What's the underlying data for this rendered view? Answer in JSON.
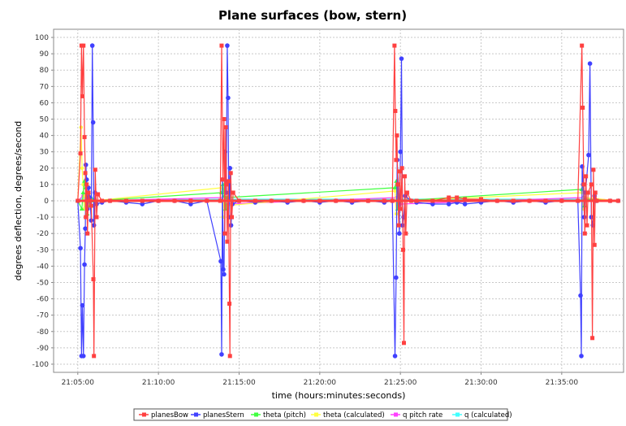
{
  "chart_data": {
    "type": "line",
    "title": "Plane surfaces (bow, stern)",
    "xlabel": "time (hours:minutes:seconds)",
    "ylabel": "degrees deflection, degrees/second",
    "ylim": [
      -105,
      105
    ],
    "xlim": [
      "21:03:30",
      "21:38:50"
    ],
    "y_ticks": [
      100,
      90,
      80,
      70,
      60,
      50,
      40,
      30,
      20,
      10,
      0,
      -10,
      -20,
      -30,
      -40,
      -50,
      -60,
      -70,
      -80,
      -90,
      -100
    ],
    "x_ticks": [
      "21:05:00",
      "21:10:00",
      "21:15:00",
      "21:20:00",
      "21:25:00",
      "21:30:00",
      "21:35:00"
    ],
    "grid": true,
    "legend_position": "bottom",
    "colors": {
      "planesBow": "#ff4040",
      "planesStern": "#4040ff",
      "theta (pitch)": "#40ff40",
      "theta (calculated)": "#ffff40",
      "q pitch rate": "#ff40ff",
      "q (calculated)": "#40ffff",
      "plot_background": "#ffffff",
      "gridline": "#c8c8c8"
    },
    "series": [
      {
        "name": "planesBow",
        "points": [
          [
            "21:05:00",
            0
          ],
          [
            "21:05:10",
            29
          ],
          [
            "21:05:14",
            95
          ],
          [
            "21:05:17",
            64
          ],
          [
            "21:05:21",
            95
          ],
          [
            "21:05:25",
            39
          ],
          [
            "21:05:28",
            17
          ],
          [
            "21:05:30",
            -10
          ],
          [
            "21:05:33",
            10
          ],
          [
            "21:05:36",
            -20
          ],
          [
            "21:05:40",
            5
          ],
          [
            "21:05:45",
            0
          ],
          [
            "21:05:50",
            -3
          ],
          [
            "21:05:58",
            -48
          ],
          [
            "21:06:00",
            -95
          ],
          [
            "21:06:05",
            19
          ],
          [
            "21:06:10",
            -10
          ],
          [
            "21:06:15",
            4
          ],
          [
            "21:06:30",
            0
          ],
          [
            "21:07:00",
            0
          ],
          [
            "21:08:00",
            0
          ],
          [
            "21:09:00",
            0
          ],
          [
            "21:10:00",
            0
          ],
          [
            "21:11:00",
            0
          ],
          [
            "21:12:00",
            0
          ],
          [
            "21:13:00",
            0
          ],
          [
            "21:13:50",
            0
          ],
          [
            "21:13:55",
            95
          ],
          [
            "21:14:00",
            13
          ],
          [
            "21:14:04",
            50
          ],
          [
            "21:14:07",
            -20
          ],
          [
            "21:14:10",
            45
          ],
          [
            "21:14:13",
            10
          ],
          [
            "21:14:16",
            -25
          ],
          [
            "21:14:20",
            12
          ],
          [
            "21:14:24",
            -63
          ],
          [
            "21:14:26",
            -95
          ],
          [
            "21:14:29",
            17
          ],
          [
            "21:14:33",
            -10
          ],
          [
            "21:14:38",
            5
          ],
          [
            "21:15:00",
            0
          ],
          [
            "21:16:00",
            0
          ],
          [
            "21:17:00",
            0
          ],
          [
            "21:18:00",
            0
          ],
          [
            "21:19:00",
            0
          ],
          [
            "21:20:00",
            0
          ],
          [
            "21:21:00",
            0
          ],
          [
            "21:22:00",
            0
          ],
          [
            "21:23:00",
            0
          ],
          [
            "21:24:00",
            0
          ],
          [
            "21:24:30",
            0
          ],
          [
            "21:24:38",
            95
          ],
          [
            "21:24:41",
            55
          ],
          [
            "21:24:44",
            25
          ],
          [
            "21:24:47",
            40
          ],
          [
            "21:24:50",
            10
          ],
          [
            "21:24:54",
            -15
          ],
          [
            "21:24:58",
            18
          ],
          [
            "21:25:02",
            -5
          ],
          [
            "21:25:06",
            20
          ],
          [
            "21:25:10",
            -30
          ],
          [
            "21:25:13",
            -87
          ],
          [
            "21:25:16",
            15
          ],
          [
            "21:25:20",
            -20
          ],
          [
            "21:25:25",
            5
          ],
          [
            "21:25:40",
            0
          ],
          [
            "21:26:00",
            0
          ],
          [
            "21:27:00",
            0
          ],
          [
            "21:28:00",
            2
          ],
          [
            "21:28:30",
            2
          ],
          [
            "21:29:00",
            1
          ],
          [
            "21:30:00",
            1
          ],
          [
            "21:31:00",
            0
          ],
          [
            "21:32:00",
            0
          ],
          [
            "21:33:00",
            0
          ],
          [
            "21:34:00",
            0
          ],
          [
            "21:35:00",
            0
          ],
          [
            "21:36:00",
            0
          ],
          [
            "21:36:15",
            95
          ],
          [
            "21:36:18",
            57
          ],
          [
            "21:36:22",
            10
          ],
          [
            "21:36:26",
            -20
          ],
          [
            "21:36:30",
            15
          ],
          [
            "21:36:34",
            -15
          ],
          [
            "21:36:38",
            5
          ],
          [
            "21:36:50",
            10
          ],
          [
            "21:36:54",
            -84
          ],
          [
            "21:36:58",
            19
          ],
          [
            "21:37:02",
            -27
          ],
          [
            "21:37:05",
            5
          ],
          [
            "21:37:10",
            0
          ],
          [
            "21:38:00",
            0
          ],
          [
            "21:38:30",
            0
          ]
        ]
      },
      {
        "name": "planesStern",
        "points": [
          [
            "21:05:00",
            0
          ],
          [
            "21:05:10",
            -29
          ],
          [
            "21:05:14",
            -95
          ],
          [
            "21:05:17",
            -64
          ],
          [
            "21:05:21",
            -95
          ],
          [
            "21:05:25",
            -39
          ],
          [
            "21:05:28",
            -17
          ],
          [
            "21:05:30",
            22
          ],
          [
            "21:05:33",
            13
          ],
          [
            "21:05:36",
            -5
          ],
          [
            "21:05:40",
            8
          ],
          [
            "21:05:45",
            2
          ],
          [
            "21:05:50",
            -12
          ],
          [
            "21:05:54",
            95
          ],
          [
            "21:05:57",
            48
          ],
          [
            "21:06:00",
            -15
          ],
          [
            "21:06:04",
            5
          ],
          [
            "21:06:10",
            -2
          ],
          [
            "21:06:30",
            -1
          ],
          [
            "21:07:00",
            0
          ],
          [
            "21:08:00",
            -1
          ],
          [
            "21:09:00",
            -2
          ],
          [
            "21:10:00",
            0
          ],
          [
            "21:11:00",
            0
          ],
          [
            "21:12:00",
            -2
          ],
          [
            "21:13:00",
            0
          ],
          [
            "21:13:52",
            -37
          ],
          [
            "21:13:55",
            -94
          ],
          [
            "21:13:58",
            13
          ],
          [
            "21:14:01",
            -42
          ],
          [
            "21:14:04",
            -45
          ],
          [
            "21:14:08",
            30
          ],
          [
            "21:14:12",
            5
          ],
          [
            "21:14:16",
            95
          ],
          [
            "21:14:19",
            63
          ],
          [
            "21:14:22",
            -10
          ],
          [
            "21:14:26",
            20
          ],
          [
            "21:14:30",
            -15
          ],
          [
            "21:14:35",
            -2
          ],
          [
            "21:15:00",
            0
          ],
          [
            "21:16:00",
            -1
          ],
          [
            "21:17:00",
            0
          ],
          [
            "21:18:00",
            -1
          ],
          [
            "21:19:00",
            0
          ],
          [
            "21:20:00",
            -1
          ],
          [
            "21:21:00",
            0
          ],
          [
            "21:22:00",
            -1
          ],
          [
            "21:23:00",
            0
          ],
          [
            "21:24:00",
            -1
          ],
          [
            "21:24:30",
            0
          ],
          [
            "21:24:40",
            -95
          ],
          [
            "21:24:44",
            -47
          ],
          [
            "21:24:48",
            25
          ],
          [
            "21:24:52",
            10
          ],
          [
            "21:24:56",
            -20
          ],
          [
            "21:25:00",
            30
          ],
          [
            "21:25:04",
            87
          ],
          [
            "21:25:08",
            -15
          ],
          [
            "21:25:12",
            -10
          ],
          [
            "21:25:18",
            3
          ],
          [
            "21:25:40",
            0
          ],
          [
            "21:26:00",
            -1
          ],
          [
            "21:27:00",
            -2
          ],
          [
            "21:28:00",
            -2
          ],
          [
            "21:28:30",
            -1
          ],
          [
            "21:29:00",
            -2
          ],
          [
            "21:30:00",
            -1
          ],
          [
            "21:31:00",
            0
          ],
          [
            "21:32:00",
            -1
          ],
          [
            "21:33:00",
            0
          ],
          [
            "21:34:00",
            -1
          ],
          [
            "21:35:00",
            0
          ],
          [
            "21:36:00",
            0
          ],
          [
            "21:36:10",
            -58
          ],
          [
            "21:36:13",
            -95
          ],
          [
            "21:36:16",
            21
          ],
          [
            "21:36:20",
            10
          ],
          [
            "21:36:24",
            -10
          ],
          [
            "21:36:28",
            5
          ],
          [
            "21:36:40",
            28
          ],
          [
            "21:36:45",
            84
          ],
          [
            "21:36:50",
            -10
          ],
          [
            "21:36:56",
            -15
          ],
          [
            "21:37:02",
            3
          ],
          [
            "21:37:10",
            0
          ],
          [
            "21:38:00",
            0
          ],
          [
            "21:38:30",
            0
          ]
        ]
      },
      {
        "name": "theta (pitch)",
        "points": [
          [
            "21:05:00",
            0
          ],
          [
            "21:05:15",
            -5
          ],
          [
            "21:05:20",
            5
          ],
          [
            "21:05:25",
            12
          ],
          [
            "21:05:30",
            8
          ],
          [
            "21:05:35",
            -8
          ],
          [
            "21:05:40",
            5
          ],
          [
            "21:05:45",
            -3
          ],
          [
            "21:05:50",
            2
          ],
          [
            "21:06:00",
            0
          ],
          [
            "21:13:55",
            5
          ],
          [
            "21:14:00",
            10
          ],
          [
            "21:14:05",
            3
          ],
          [
            "21:14:10",
            -5
          ],
          [
            "21:14:15",
            2
          ],
          [
            "21:24:40",
            8
          ],
          [
            "21:24:45",
            12
          ],
          [
            "21:24:50",
            -5
          ],
          [
            "21:24:55",
            3
          ],
          [
            "21:25:00",
            0
          ],
          [
            "21:36:15",
            7
          ],
          [
            "21:36:20",
            10
          ],
          [
            "21:36:25",
            -3
          ],
          [
            "21:36:30",
            1
          ],
          [
            "21:38:30",
            0
          ]
        ]
      },
      {
        "name": "theta (calculated)",
        "points": [
          [
            "21:05:00",
            0
          ],
          [
            "21:05:12",
            45
          ],
          [
            "21:05:16",
            20
          ],
          [
            "21:05:20",
            10
          ],
          [
            "21:05:24",
            -5
          ],
          [
            "21:05:30",
            3
          ],
          [
            "21:06:00",
            0
          ],
          [
            "21:13:55",
            8
          ],
          [
            "21:14:00",
            -10
          ],
          [
            "21:14:05",
            5
          ],
          [
            "21:14:10",
            -3
          ],
          [
            "21:24:40",
            6
          ],
          [
            "21:24:45",
            -8
          ],
          [
            "21:24:50",
            4
          ],
          [
            "21:25:00",
            0
          ],
          [
            "21:36:15",
            5
          ],
          [
            "21:36:20",
            -5
          ],
          [
            "21:36:25",
            2
          ],
          [
            "21:38:30",
            0
          ]
        ]
      },
      {
        "name": "q pitch rate",
        "points": [
          [
            "21:05:00",
            0
          ],
          [
            "21:05:20",
            3
          ],
          [
            "21:05:30",
            -3
          ],
          [
            "21:06:00",
            0
          ],
          [
            "21:14:00",
            2
          ],
          [
            "21:14:10",
            -2
          ],
          [
            "21:24:45",
            2
          ],
          [
            "21:25:00",
            -2
          ],
          [
            "21:36:20",
            2
          ],
          [
            "21:38:30",
            0
          ]
        ]
      },
      {
        "name": "q (calculated)",
        "points": [
          [
            "21:05:00",
            0
          ],
          [
            "21:05:25",
            2
          ],
          [
            "21:05:35",
            -2
          ],
          [
            "21:06:00",
            0
          ],
          [
            "21:14:05",
            1
          ],
          [
            "21:24:50",
            1
          ],
          [
            "21:36:25",
            1
          ],
          [
            "21:38:30",
            0
          ]
        ]
      }
    ]
  }
}
